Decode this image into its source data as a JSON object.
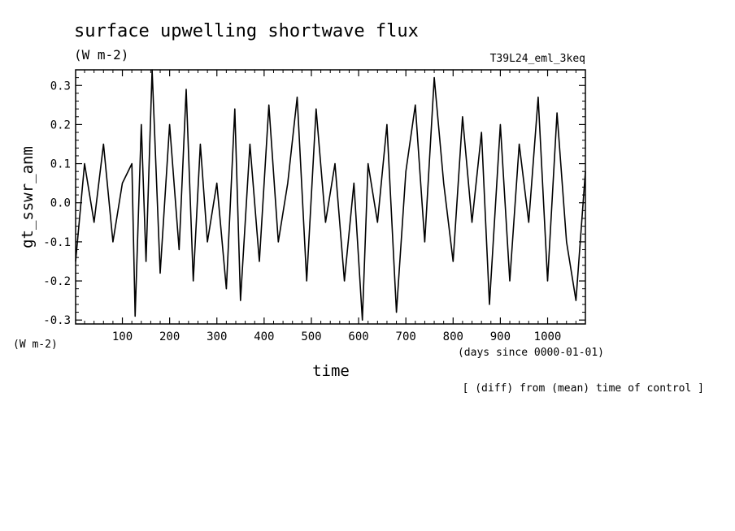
{
  "chart_data": {
    "type": "line",
    "title": "surface upwelling shortwave flux",
    "units": "(W m-2)",
    "experiment": "T39L24_eml_3keq",
    "ylabel": "gt_sswr_anm",
    "ylabel_units": "(W m-2)",
    "xlabel": "time",
    "xlabel_units": "(days since 0000-01-01)",
    "note": "[ (diff) from (mean) time of control ]",
    "xlim": [
      1,
      1080
    ],
    "ylim": [
      -0.31,
      0.34
    ],
    "xticks": [
      100,
      200,
      300,
      400,
      500,
      600,
      700,
      800,
      900,
      1000
    ],
    "yticks": [
      -0.3,
      -0.2,
      -0.1,
      0.0,
      0.1,
      0.2,
      0.3
    ],
    "ytick_labels": [
      "-0.3",
      "-0.2",
      "-0.1",
      "0.0",
      "0.1",
      "0.2",
      "0.3"
    ],
    "grid": false,
    "legend": false,
    "series": [
      {
        "x": [
          1,
          20,
          40,
          60,
          80,
          100,
          120,
          127,
          140,
          150,
          163,
          180,
          200,
          220,
          235,
          250,
          265,
          280,
          300,
          320,
          338,
          350,
          370,
          390,
          410,
          430,
          450,
          470,
          490,
          510,
          530,
          550,
          570,
          590,
          608,
          620,
          640,
          660,
          680,
          700,
          720,
          740,
          760,
          780,
          800,
          820,
          840,
          860,
          877,
          900,
          920,
          940,
          960,
          980,
          1000,
          1020,
          1040,
          1060,
          1080
        ],
        "values": [
          -0.15,
          0.1,
          -0.05,
          0.15,
          -0.1,
          0.05,
          0.1,
          -0.29,
          0.2,
          -0.15,
          0.34,
          -0.18,
          0.2,
          -0.12,
          0.29,
          -0.2,
          0.15,
          -0.1,
          0.05,
          -0.22,
          0.24,
          -0.25,
          0.15,
          -0.15,
          0.25,
          -0.1,
          0.05,
          0.27,
          -0.2,
          0.24,
          -0.05,
          0.1,
          -0.2,
          0.05,
          -0.3,
          0.1,
          -0.05,
          0.2,
          -0.28,
          0.08,
          0.25,
          -0.1,
          0.32,
          0.05,
          -0.15,
          0.22,
          -0.05,
          0.18,
          -0.26,
          0.2,
          -0.2,
          0.15,
          -0.05,
          0.27,
          -0.2,
          0.23,
          -0.1,
          -0.25,
          0.08
        ]
      }
    ]
  }
}
